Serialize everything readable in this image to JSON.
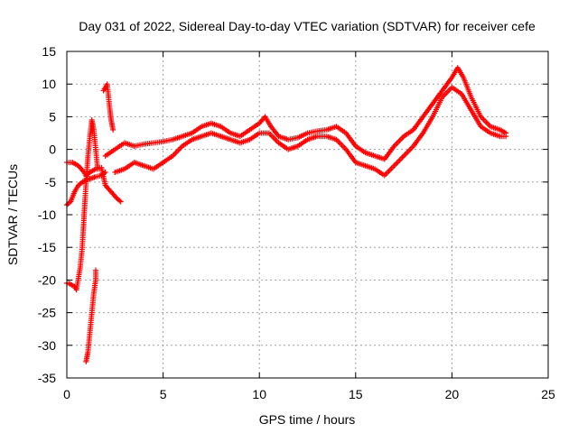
{
  "chart_data": {
    "type": "scatter",
    "title": "Day 031 of 2022, Sidereal Day-to-day VTEC variation (SDTVAR) for receiver cefe",
    "xlabel": "GPS time / hours",
    "ylabel": "SDTVAR / TECUs",
    "xlim": [
      0,
      25
    ],
    "ylim": [
      -35,
      15
    ],
    "x_ticks": [
      0,
      5,
      10,
      15,
      20,
      25
    ],
    "y_ticks": [
      -35,
      -30,
      -25,
      -20,
      -15,
      -10,
      -5,
      0,
      5,
      10,
      15
    ],
    "grid": true,
    "marker": "+",
    "marker_color": "#ff0000",
    "series": [
      {
        "name": "trace-main-upper",
        "points": [
          [
            2.0,
            -1.0
          ],
          [
            2.5,
            0.0
          ],
          [
            3.0,
            1.0
          ],
          [
            3.5,
            0.5
          ],
          [
            4.0,
            0.8
          ],
          [
            4.5,
            1.0
          ],
          [
            5.0,
            1.2
          ],
          [
            5.5,
            1.5
          ],
          [
            6.0,
            2.0
          ],
          [
            6.5,
            2.5
          ],
          [
            7.0,
            3.5
          ],
          [
            7.5,
            4.0
          ],
          [
            8.0,
            3.5
          ],
          [
            8.5,
            2.5
          ],
          [
            9.0,
            2.0
          ],
          [
            9.5,
            3.0
          ],
          [
            10.0,
            4.0
          ],
          [
            10.3,
            5.0
          ],
          [
            10.6,
            3.5
          ],
          [
            11.0,
            2.0
          ],
          [
            11.5,
            1.5
          ],
          [
            12.0,
            1.8
          ],
          [
            12.5,
            2.5
          ],
          [
            13.0,
            2.8
          ],
          [
            13.5,
            3.0
          ],
          [
            14.0,
            3.5
          ],
          [
            14.5,
            2.5
          ],
          [
            15.0,
            0.5
          ],
          [
            15.5,
            -0.5
          ],
          [
            16.0,
            -1.0
          ],
          [
            16.5,
            -1.5
          ],
          [
            17.0,
            0.5
          ],
          [
            17.5,
            2.0
          ],
          [
            18.0,
            3.0
          ],
          [
            18.5,
            5.0
          ],
          [
            19.0,
            7.0
          ],
          [
            19.5,
            9.0
          ],
          [
            20.0,
            11.0
          ],
          [
            20.3,
            12.5
          ],
          [
            20.6,
            11.0
          ],
          [
            21.0,
            8.0
          ],
          [
            21.5,
            5.0
          ],
          [
            22.0,
            3.5
          ],
          [
            22.5,
            3.0
          ],
          [
            22.8,
            2.5
          ]
        ]
      },
      {
        "name": "trace-main-lower",
        "points": [
          [
            2.5,
            -3.5
          ],
          [
            3.0,
            -3.0
          ],
          [
            3.5,
            -2.0
          ],
          [
            4.0,
            -2.5
          ],
          [
            4.5,
            -3.0
          ],
          [
            5.0,
            -2.0
          ],
          [
            5.5,
            -1.0
          ],
          [
            6.0,
            0.5
          ],
          [
            6.5,
            1.5
          ],
          [
            7.0,
            2.0
          ],
          [
            7.5,
            2.5
          ],
          [
            8.0,
            2.0
          ],
          [
            8.5,
            1.5
          ],
          [
            9.0,
            1.0
          ],
          [
            9.5,
            1.5
          ],
          [
            10.0,
            2.5
          ],
          [
            10.5,
            2.5
          ],
          [
            11.0,
            1.0
          ],
          [
            11.5,
            0.0
          ],
          [
            12.0,
            0.5
          ],
          [
            12.5,
            1.5
          ],
          [
            13.0,
            2.0
          ],
          [
            13.5,
            2.0
          ],
          [
            14.0,
            1.5
          ],
          [
            14.5,
            0.0
          ],
          [
            15.0,
            -2.0
          ],
          [
            15.5,
            -2.5
          ],
          [
            16.0,
            -3.0
          ],
          [
            16.5,
            -4.0
          ],
          [
            17.0,
            -2.5
          ],
          [
            17.5,
            -1.0
          ],
          [
            18.0,
            0.5
          ],
          [
            18.5,
            2.5
          ],
          [
            19.0,
            5.0
          ],
          [
            19.5,
            8.0
          ],
          [
            20.0,
            9.5
          ],
          [
            20.5,
            8.5
          ],
          [
            21.0,
            6.0
          ],
          [
            21.5,
            3.5
          ],
          [
            22.0,
            2.5
          ],
          [
            22.5,
            2.0
          ],
          [
            22.8,
            2.0
          ]
        ]
      },
      {
        "name": "trace-early-left",
        "points": [
          [
            0.0,
            -2.0
          ],
          [
            0.3,
            -2.0
          ],
          [
            0.6,
            -2.5
          ],
          [
            0.9,
            -3.5
          ],
          [
            1.0,
            -4.0
          ],
          [
            1.2,
            -3.5
          ],
          [
            1.5,
            -3.0
          ],
          [
            1.8,
            -2.8
          ],
          [
            2.0,
            -5.5
          ],
          [
            2.3,
            -6.5
          ],
          [
            2.6,
            -7.5
          ],
          [
            2.8,
            -8.0
          ],
          [
            0.0,
            -8.5
          ],
          [
            0.2,
            -8.0
          ],
          [
            0.4,
            -6.5
          ],
          [
            0.6,
            -5.5
          ],
          [
            0.9,
            -4.8
          ],
          [
            1.2,
            -4.5
          ],
          [
            1.5,
            -4.2
          ],
          [
            1.8,
            -4.0
          ],
          [
            2.0,
            -3.5
          ]
        ]
      },
      {
        "name": "trace-spike",
        "points": [
          [
            0.0,
            -20.5
          ],
          [
            0.1,
            -20.5
          ],
          [
            0.4,
            -21.0
          ],
          [
            0.5,
            -21.5
          ],
          [
            0.7,
            -18.0
          ],
          [
            0.8,
            -15.0
          ],
          [
            0.9,
            -10.0
          ],
          [
            1.0,
            -5.0
          ],
          [
            1.1,
            -1.0
          ],
          [
            1.2,
            2.0
          ],
          [
            1.3,
            4.5
          ],
          [
            1.4,
            3.0
          ],
          [
            1.5,
            0.0
          ],
          [
            1.6,
            -3.0
          ],
          [
            1.0,
            -32.5
          ],
          [
            1.1,
            -31.0
          ],
          [
            1.2,
            -28.0
          ],
          [
            1.3,
            -25.0
          ],
          [
            1.4,
            -22.0
          ],
          [
            1.5,
            -20.0
          ],
          [
            1.5,
            -18.5
          ],
          [
            1.9,
            9.0
          ],
          [
            2.0,
            9.5
          ],
          [
            2.1,
            10.0
          ],
          [
            2.2,
            7.0
          ],
          [
            2.3,
            4.5
          ],
          [
            2.4,
            3.0
          ]
        ]
      }
    ]
  }
}
